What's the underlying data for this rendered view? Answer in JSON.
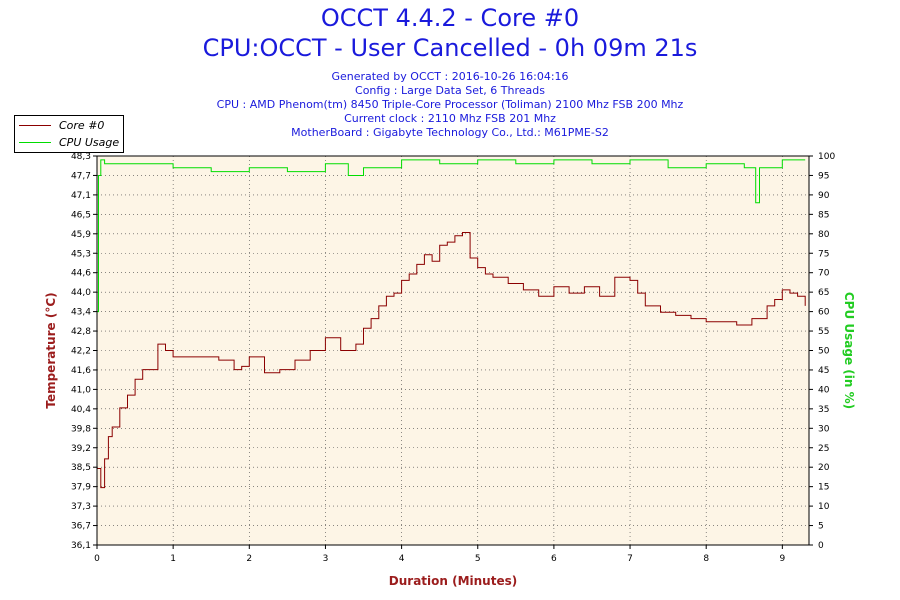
{
  "header": {
    "title_line1": "OCCT 4.4.2 - Core #0",
    "title_line2": "CPU:OCCT - User Cancelled - 0h 09m 21s",
    "info": [
      "Generated by OCCT : 2016-10-26 16:04:16",
      "Config : Large Data Set, 6 Threads",
      "CPU : AMD Phenom(tm) 8450 Triple-Core Processor (Toliman) 2100 Mhz FSB 200 Mhz",
      "Current clock : 2110 Mhz FSB 201 Mhz",
      "MotherBoard : Gigabyte Technology Co., Ltd.: M61PME-S2"
    ]
  },
  "colors": {
    "temp": "#8b0000",
    "cpu": "#00dd00",
    "plot_bg": "#fdf5e6",
    "axis_label_temp": "#9b1c1c",
    "axis_label_cpu": "#22cc22",
    "title": "#1a1adc"
  },
  "chart_data": {
    "type": "line",
    "xlabel": "Duration (Minutes)",
    "ylabel_left": "Temperature (°C)",
    "ylabel_right": "CPU Usage (in %)",
    "xlim": [
      0,
      9.35
    ],
    "ylim_left": [
      36.1,
      48.3
    ],
    "ylim_right": [
      0,
      100
    ],
    "x_ticks": [
      "0",
      "1",
      "2",
      "3",
      "4",
      "5",
      "6",
      "7",
      "8",
      "9"
    ],
    "y_ticks_left": [
      "36,1",
      "36,7",
      "37,3",
      "37,9",
      "38,5",
      "39,2",
      "39,8",
      "40,4",
      "41,0",
      "41,6",
      "42,2",
      "42,8",
      "43,4",
      "44,0",
      "44,6",
      "45,3",
      "45,9",
      "46,5",
      "47,1",
      "47,7",
      "48,3"
    ],
    "y_ticks_right": [
      "0",
      "5",
      "10",
      "15",
      "20",
      "25",
      "30",
      "35",
      "40",
      "45",
      "50",
      "55",
      "60",
      "65",
      "70",
      "75",
      "80",
      "85",
      "90",
      "95",
      "100"
    ],
    "grid": true,
    "legend_position": "top-left",
    "series": [
      {
        "name": "Core #0",
        "axis": "left",
        "x": [
          0,
          0.05,
          0.1,
          0.15,
          0.2,
          0.3,
          0.4,
          0.5,
          0.6,
          0.7,
          0.8,
          0.9,
          1.0,
          1.2,
          1.4,
          1.6,
          1.8,
          1.9,
          2.0,
          2.2,
          2.4,
          2.6,
          2.8,
          3.0,
          3.2,
          3.4,
          3.5,
          3.6,
          3.7,
          3.8,
          3.9,
          4.0,
          4.1,
          4.2,
          4.3,
          4.4,
          4.5,
          4.6,
          4.7,
          4.8,
          4.9,
          5.0,
          5.1,
          5.2,
          5.4,
          5.6,
          5.8,
          6.0,
          6.2,
          6.4,
          6.6,
          6.8,
          7.0,
          7.1,
          7.2,
          7.4,
          7.6,
          7.8,
          8.0,
          8.2,
          8.4,
          8.6,
          8.8,
          8.9,
          9.0,
          9.1,
          9.2,
          9.3
        ],
        "values": [
          38.5,
          37.9,
          38.8,
          39.5,
          39.8,
          40.4,
          40.8,
          41.3,
          41.6,
          41.6,
          42.4,
          42.2,
          42.0,
          42.0,
          42.0,
          41.9,
          41.6,
          41.7,
          42.0,
          41.5,
          41.6,
          41.9,
          42.2,
          42.6,
          42.2,
          42.4,
          42.9,
          43.2,
          43.6,
          43.9,
          44.0,
          44.4,
          44.6,
          44.9,
          45.2,
          45.0,
          45.5,
          45.6,
          45.8,
          45.9,
          45.1,
          44.8,
          44.6,
          44.5,
          44.3,
          44.1,
          43.9,
          44.2,
          44.0,
          44.2,
          43.9,
          44.5,
          44.4,
          44.0,
          43.6,
          43.4,
          43.3,
          43.2,
          43.1,
          43.1,
          43.0,
          43.2,
          43.6,
          43.8,
          44.1,
          44.0,
          43.9,
          43.6
        ]
      },
      {
        "name": "CPU Usage",
        "axis": "right",
        "x": [
          0,
          0.02,
          0.05,
          0.1,
          0.5,
          1.0,
          1.5,
          2.0,
          2.5,
          3.0,
          3.3,
          3.5,
          4.0,
          4.5,
          5.0,
          5.5,
          6.0,
          6.5,
          7.0,
          7.5,
          8.0,
          8.5,
          8.65,
          8.7,
          9.0,
          9.3
        ],
        "values": [
          60,
          95,
          99,
          98,
          98,
          97,
          96,
          97,
          96,
          98,
          95,
          97,
          99,
          98,
          99,
          98,
          99,
          98,
          99,
          97,
          98,
          97,
          88,
          97,
          99,
          99
        ]
      }
    ]
  },
  "legend": [
    {
      "label": "Core #0"
    },
    {
      "label": "CPU Usage"
    }
  ]
}
